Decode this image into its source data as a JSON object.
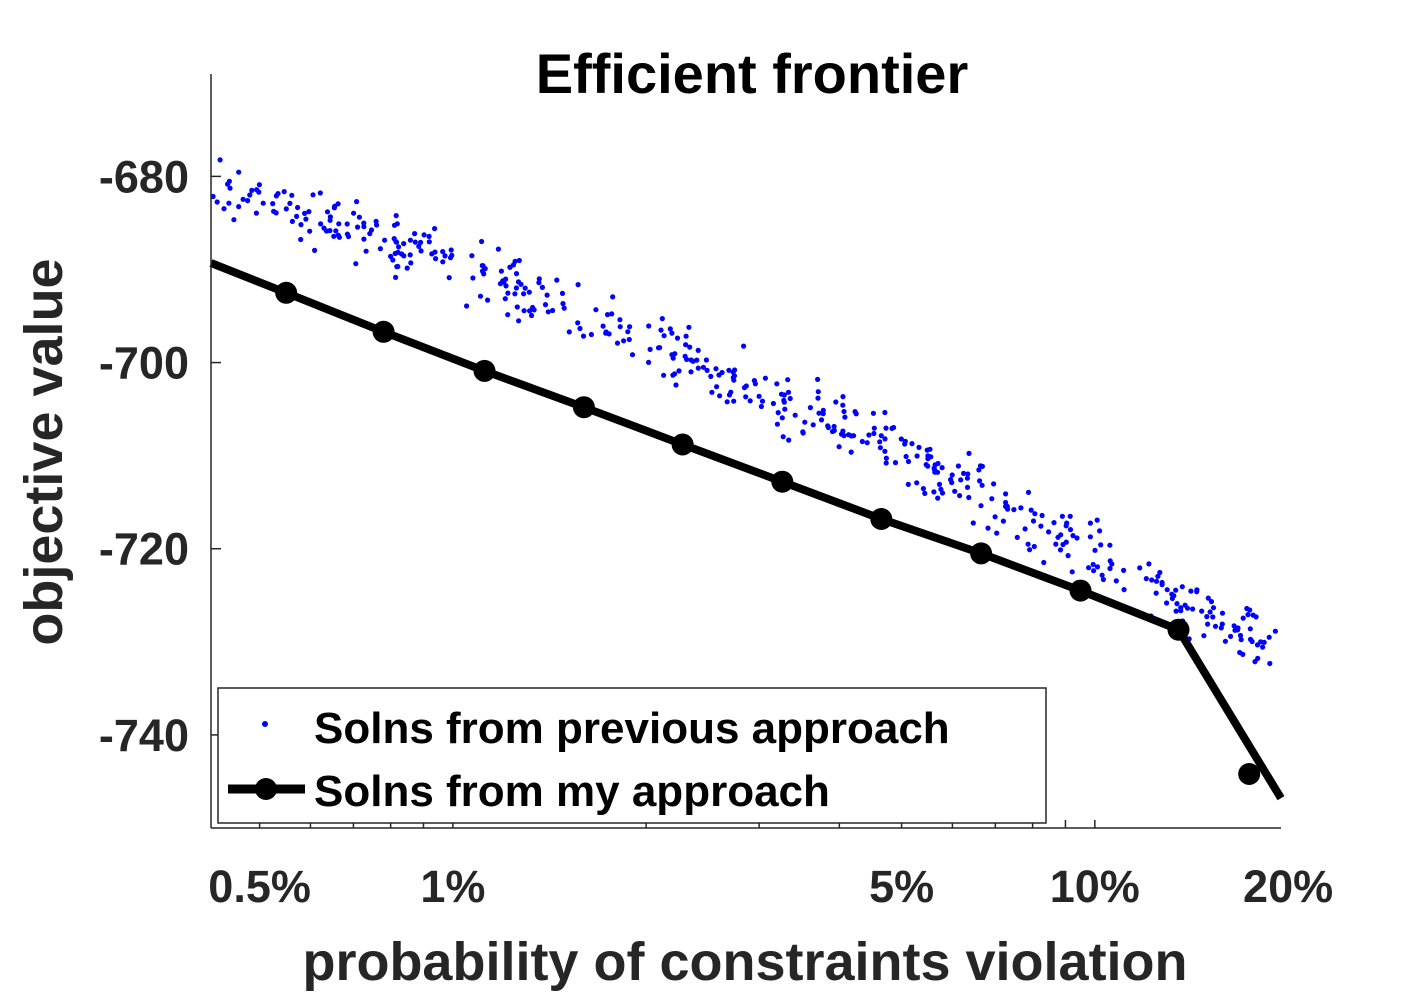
{
  "chart_data": {
    "type": "scatter",
    "title": "Efficient frontier",
    "xlabel": "probability of constraints violation",
    "ylabel": "objective value",
    "xscale": "log",
    "xlim": [
      0.0042,
      0.195
    ],
    "ylim": [
      -750,
      -669
    ],
    "x_ticks": [
      {
        "value": 0.005,
        "label": "0.5%"
      },
      {
        "value": 0.01,
        "label": "1%"
      },
      {
        "value": 0.05,
        "label": "5%"
      },
      {
        "value": 0.1,
        "label": "10%"
      },
      {
        "value": 0.2,
        "label": "20%"
      }
    ],
    "y_ticks": [
      {
        "value": -680,
        "label": "-680"
      },
      {
        "value": -700,
        "label": "-700"
      },
      {
        "value": -720,
        "label": "-720"
      },
      {
        "value": -740,
        "label": "-740"
      }
    ],
    "grid": false,
    "legend_position": "bottom-left",
    "colors": {
      "previous": "#0000ff",
      "mine": "#000000",
      "axis": "#262626"
    },
    "series": [
      {
        "name": "Solns from previous approach",
        "style": "dots",
        "color": "#0000ff",
        "trend": {
          "x": [
            0.0042,
            0.01,
            0.02,
            0.05,
            0.1,
            0.195
          ],
          "y": [
            -680.5,
            -689.5,
            -697.5,
            -709.5,
            -720.5,
            -731.5
          ]
        },
        "count": 500,
        "spread": 1.6
      },
      {
        "name": "Solns from my approach",
        "style": "line-marker",
        "color": "#000000",
        "x": [
          0.0042,
          0.0055,
          0.0078,
          0.0112,
          0.016,
          0.0228,
          0.0326,
          0.0465,
          0.0665,
          0.095,
          0.135,
          0.195
        ],
        "y": [
          -689.3,
          -692.5,
          -696.7,
          -700.9,
          -704.8,
          -708.8,
          -712.8,
          -716.8,
          -720.5,
          -724.5,
          -728.7,
          -746.8
        ],
        "markers": [
          {
            "x": 0.0055,
            "y": -692.5
          },
          {
            "x": 0.0078,
            "y": -696.7
          },
          {
            "x": 0.0112,
            "y": -700.9
          },
          {
            "x": 0.016,
            "y": -704.8
          },
          {
            "x": 0.0228,
            "y": -708.8
          },
          {
            "x": 0.0326,
            "y": -712.8
          },
          {
            "x": 0.0465,
            "y": -716.8
          },
          {
            "x": 0.0665,
            "y": -720.5
          },
          {
            "x": 0.095,
            "y": -724.5
          },
          {
            "x": 0.135,
            "y": -728.7
          },
          {
            "x": 0.174,
            "y": -744.2
          }
        ]
      }
    ]
  }
}
